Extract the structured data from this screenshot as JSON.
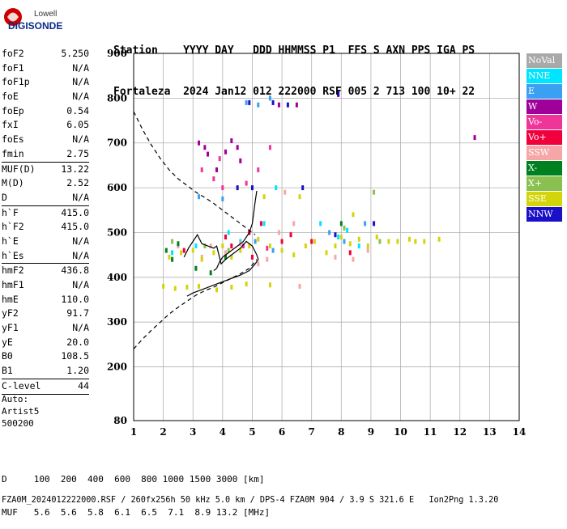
{
  "logo": {
    "line1": "Lowell",
    "line2": "DIGISONDE"
  },
  "header": {
    "row1": "Station    YYYY DAY   DDD HHMMSS P1  FFS S AXN PPS IGA PS",
    "row2": "Fortaleza  2024 Jan12 012 222000 RSF 005 2 713 100 10+ 22"
  },
  "params": [
    {
      "label": "foF2",
      "value": "5.250"
    },
    {
      "label": "foF1",
      "value": "N/A"
    },
    {
      "label": "foF1p",
      "value": "N/A"
    },
    {
      "label": "foE",
      "value": "N/A"
    },
    {
      "label": "foEp",
      "value": "0.54"
    },
    {
      "label": "fxI",
      "value": "6.05"
    },
    {
      "label": "foEs",
      "value": "N/A"
    },
    {
      "label": "fmin",
      "value": "2.75",
      "sep": true
    },
    {
      "label": "MUF(D)",
      "value": "13.22"
    },
    {
      "label": "M(D)",
      "value": "2.52"
    },
    {
      "label": "D",
      "value": "N/A",
      "sep": true
    },
    {
      "label": "h`F",
      "value": "415.0"
    },
    {
      "label": "h`F2",
      "value": "415.0"
    },
    {
      "label": "h`E",
      "value": "N/A"
    },
    {
      "label": "h`Es",
      "value": "N/A",
      "sep": true
    },
    {
      "label": "hmF2",
      "value": "436.8"
    },
    {
      "label": "hmF1",
      "value": "N/A"
    },
    {
      "label": "hmE",
      "value": "110.0"
    },
    {
      "label": "yF2",
      "value": "91.7"
    },
    {
      "label": "yF1",
      "value": "N/A"
    },
    {
      "label": "yE",
      "value": "20.0"
    },
    {
      "label": "B0",
      "value": "108.5"
    },
    {
      "label": "B1",
      "value": "1.20",
      "sep": true
    },
    {
      "label": "C-level",
      "value": "44",
      "sep": true
    }
  ],
  "auto": {
    "line1": "Auto:",
    "line2": "Artist5",
    "line3": "500200"
  },
  "footer": {
    "d_row": "D     100  200  400  600  800 1000 1500 3000 [km]",
    "muf_row": "MUF   5.6  5.6  5.8  6.1  6.5  7.1  8.9 13.2 [MHz]",
    "file_row": "FZA0M_2024012222000.RSF / 260fx256h 50 kHz 5.0 km / DPS-4 FZA0M 904 / 3.9 S 321.6 E   Ion2Png 1.3.20"
  },
  "legend": [
    {
      "label": "NoVal",
      "color": "#a9a9a9"
    },
    {
      "label": "NNE",
      "color": "#00e5ff"
    },
    {
      "label": "E",
      "color": "#3aa0f2"
    },
    {
      "label": "W",
      "color": "#a0009a"
    },
    {
      "label": "Vo-",
      "color": "#f0359a"
    },
    {
      "label": "Vo+",
      "color": "#f0003c"
    },
    {
      "label": "SSW",
      "color": "#f6a6a6"
    },
    {
      "label": "X-",
      "color": "#00801e"
    },
    {
      "label": "X+",
      "color": "#8ac050"
    },
    {
      "label": "SSE",
      "color": "#d4d40a"
    },
    {
      "label": "NNW",
      "color": "#1a10c8"
    }
  ],
  "chart_data": {
    "type": "scatter",
    "title": "",
    "xlabel": "",
    "ylabel": "",
    "xlim": [
      1,
      14
    ],
    "ylim": [
      80,
      900
    ],
    "x_ticks": [
      "1",
      "2",
      "3",
      "4",
      "5",
      "6",
      "7",
      "8",
      "9",
      "10",
      "11",
      "12",
      "13",
      "14"
    ],
    "y_ticks": [
      "80",
      "200",
      "300",
      "400",
      "500",
      "600",
      "700",
      "800",
      "900"
    ],
    "grid": true,
    "series": [
      {
        "name": "NNE",
        "color": "#00e5ff",
        "points": [
          [
            2.3,
            455
          ],
          [
            3.1,
            470
          ],
          [
            4.2,
            500
          ],
          [
            4.6,
            480
          ],
          [
            5.4,
            520
          ],
          [
            7.9,
            490
          ],
          [
            8.2,
            505
          ],
          [
            8.6,
            470
          ],
          [
            5.8,
            600
          ],
          [
            7.3,
            520
          ]
        ]
      },
      {
        "name": "E",
        "color": "#3aa0f2",
        "points": [
          [
            4.8,
            790
          ],
          [
            5.2,
            785
          ],
          [
            5.6,
            800
          ],
          [
            3.2,
            580
          ],
          [
            4.0,
            575
          ],
          [
            5.1,
            480
          ],
          [
            5.7,
            460
          ],
          [
            7.6,
            500
          ],
          [
            8.1,
            480
          ],
          [
            8.8,
            520
          ]
        ]
      },
      {
        "name": "W",
        "color": "#a0009a",
        "points": [
          [
            3.2,
            700
          ],
          [
            3.4,
            690
          ],
          [
            3.5,
            675
          ],
          [
            4.3,
            705
          ],
          [
            4.5,
            690
          ],
          [
            4.6,
            660
          ],
          [
            5.9,
            785
          ],
          [
            6.5,
            785
          ],
          [
            7.9,
            808
          ],
          [
            12.5,
            712
          ],
          [
            3.8,
            640
          ],
          [
            4.1,
            680
          ]
        ]
      },
      {
        "name": "Vo-",
        "color": "#f0359a",
        "points": [
          [
            3.3,
            640
          ],
          [
            3.7,
            620
          ],
          [
            4.0,
            600
          ],
          [
            4.8,
            610
          ],
          [
            5.2,
            640
          ],
          [
            5.6,
            690
          ],
          [
            3.9,
            665
          ],
          [
            4.7,
            470
          ],
          [
            5.5,
            465
          ]
        ]
      },
      {
        "name": "Vo+",
        "color": "#f0003c",
        "points": [
          [
            4.1,
            490
          ],
          [
            4.3,
            470
          ],
          [
            4.9,
            500
          ],
          [
            5.0,
            445
          ],
          [
            5.3,
            520
          ],
          [
            6.3,
            495
          ],
          [
            6.0,
            480
          ],
          [
            7.0,
            480
          ],
          [
            8.3,
            455
          ],
          [
            2.7,
            460
          ]
        ]
      },
      {
        "name": "SSW",
        "color": "#f6a6a6",
        "points": [
          [
            3.6,
            470
          ],
          [
            4.1,
            455
          ],
          [
            4.6,
            475
          ],
          [
            5.2,
            430
          ],
          [
            5.5,
            440
          ],
          [
            5.9,
            500
          ],
          [
            6.1,
            590
          ],
          [
            6.4,
            520
          ],
          [
            6.6,
            380
          ],
          [
            7.8,
            445
          ],
          [
            8.4,
            440
          ],
          [
            8.9,
            460
          ],
          [
            2.5,
            470
          ],
          [
            3.3,
            445
          ]
        ]
      },
      {
        "name": "X-",
        "color": "#00801e",
        "points": [
          [
            2.1,
            460
          ],
          [
            2.3,
            440
          ],
          [
            3.1,
            420
          ],
          [
            4.1,
            445
          ],
          [
            8.0,
            520
          ],
          [
            2.5,
            475
          ],
          [
            3.6,
            410
          ]
        ]
      },
      {
        "name": "X+",
        "color": "#8ac050",
        "points": [
          [
            2.3,
            480
          ],
          [
            3.4,
            470
          ],
          [
            4.2,
            460
          ],
          [
            8.1,
            510
          ],
          [
            9.1,
            590
          ],
          [
            9.3,
            480
          ]
        ]
      },
      {
        "name": "SSE",
        "color": "#d4d40a",
        "points": [
          [
            2.0,
            380
          ],
          [
            2.4,
            375
          ],
          [
            2.8,
            378
          ],
          [
            3.2,
            380
          ],
          [
            3.8,
            372
          ],
          [
            4.3,
            378
          ],
          [
            4.8,
            385
          ],
          [
            5.6,
            383
          ],
          [
            2.2,
            445
          ],
          [
            2.6,
            455
          ],
          [
            3.0,
            460
          ],
          [
            3.3,
            440
          ],
          [
            3.7,
            455
          ],
          [
            4.0,
            470
          ],
          [
            4.3,
            445
          ],
          [
            4.6,
            460
          ],
          [
            4.9,
            470
          ],
          [
            5.2,
            485
          ],
          [
            5.6,
            470
          ],
          [
            6.0,
            460
          ],
          [
            6.4,
            450
          ],
          [
            6.8,
            470
          ],
          [
            7.1,
            480
          ],
          [
            7.5,
            455
          ],
          [
            7.8,
            470
          ],
          [
            8.0,
            490
          ],
          [
            8.3,
            475
          ],
          [
            8.6,
            485
          ],
          [
            8.9,
            470
          ],
          [
            9.2,
            490
          ],
          [
            9.6,
            480
          ],
          [
            9.9,
            480
          ],
          [
            10.3,
            485
          ],
          [
            10.5,
            480
          ],
          [
            10.8,
            480
          ],
          [
            11.3,
            485
          ],
          [
            6.6,
            580
          ],
          [
            5.4,
            580
          ],
          [
            8.4,
            540
          ]
        ]
      },
      {
        "name": "NNW",
        "color": "#1a10c8",
        "points": [
          [
            4.9,
            790
          ],
          [
            5.7,
            790
          ],
          [
            6.2,
            785
          ],
          [
            7.9,
            810
          ],
          [
            6.7,
            600
          ],
          [
            7.8,
            495
          ],
          [
            9.1,
            520
          ],
          [
            4.5,
            600
          ],
          [
            5.0,
            600
          ]
        ]
      }
    ],
    "curves": [
      {
        "style": "solid",
        "points": [
          [
            3.7,
            415
          ],
          [
            3.8,
            420
          ],
          [
            3.9,
            435
          ],
          [
            4.0,
            445
          ],
          [
            4.2,
            455
          ],
          [
            4.5,
            470
          ],
          [
            4.7,
            480
          ],
          [
            4.9,
            500
          ],
          [
            5.0,
            520
          ],
          [
            5.05,
            545
          ],
          [
            5.1,
            570
          ],
          [
            5.15,
            593
          ]
        ]
      },
      {
        "style": "solid",
        "points": [
          [
            2.7,
            445
          ],
          [
            2.85,
            465
          ],
          [
            3.0,
            480
          ],
          [
            3.15,
            495
          ],
          [
            3.3,
            475
          ],
          [
            3.5,
            470
          ],
          [
            3.7,
            465
          ],
          [
            3.8,
            470
          ],
          [
            3.95,
            430
          ],
          [
            4.1,
            440
          ],
          [
            4.3,
            450
          ],
          [
            4.6,
            465
          ],
          [
            4.8,
            480
          ],
          [
            5.0,
            470
          ],
          [
            5.15,
            450
          ],
          [
            5.2,
            440
          ],
          [
            5.1,
            430
          ],
          [
            4.9,
            415
          ],
          [
            4.6,
            405
          ],
          [
            4.2,
            395
          ],
          [
            3.8,
            385
          ],
          [
            3.4,
            375
          ],
          [
            3.0,
            365
          ],
          [
            2.8,
            358
          ]
        ]
      },
      {
        "style": "dashed",
        "points": [
          [
            1.0,
            770
          ],
          [
            1.3,
            730
          ],
          [
            1.6,
            695
          ],
          [
            1.9,
            665
          ],
          [
            2.2,
            640
          ],
          [
            2.5,
            620
          ],
          [
            2.8,
            605
          ],
          [
            3.1,
            590
          ],
          [
            3.4,
            578
          ],
          [
            3.7,
            565
          ],
          [
            4.0,
            550
          ],
          [
            4.3,
            535
          ],
          [
            4.6,
            520
          ],
          [
            4.9,
            505
          ],
          [
            5.1,
            495
          ]
        ]
      },
      {
        "style": "dashed",
        "points": [
          [
            1.0,
            240
          ],
          [
            1.3,
            262
          ],
          [
            1.6,
            282
          ],
          [
            1.9,
            300
          ],
          [
            2.2,
            318
          ],
          [
            2.5,
            333
          ],
          [
            2.8,
            347
          ],
          [
            3.1,
            360
          ],
          [
            3.4,
            370
          ],
          [
            3.7,
            378
          ],
          [
            4.0,
            388
          ],
          [
            4.3,
            398
          ],
          [
            4.6,
            408
          ],
          [
            4.9,
            420
          ],
          [
            5.15,
            440
          ]
        ]
      }
    ]
  }
}
